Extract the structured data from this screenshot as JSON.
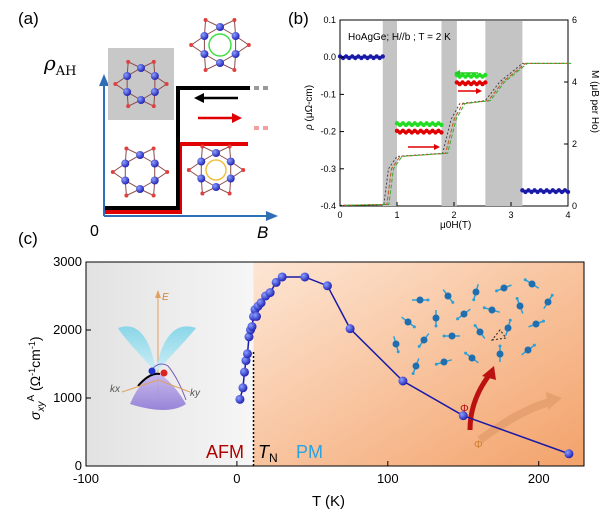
{
  "panels": {
    "a": {
      "label": "(a)",
      "y_axis_label": "ρ",
      "y_axis_sub": "AH",
      "origin_label": "0",
      "x_axis_label": "B"
    },
    "b": {
      "label": "(b)",
      "annotation": "HoAgGe; H//b ; T = 2 K",
      "y_left_label": "ρ",
      "y_left_units": "(μΩ-cm)",
      "y_right_label": "M (μB per Ho)",
      "x_label": "μ0H(T)",
      "y_left_ticks": [
        "0.1",
        "0.0",
        "-0.1",
        "-0.2",
        "-0.3",
        "-0.4"
      ],
      "y_right_ticks": [
        "0",
        "2",
        "4",
        "6"
      ],
      "x_ticks": [
        "0",
        "1",
        "2",
        "3",
        "4"
      ]
    },
    "c": {
      "label": "(c)",
      "y_label": "σxy A (Ω-1cm-1)",
      "x_label": "T (K)",
      "afm_label": "AFM",
      "pm_label": "PM",
      "tn_label": "T",
      "tn_sub": "N",
      "inset_e": "E",
      "inset_kx": "kx",
      "inset_ky": "ky",
      "phase_label": "Φ"
    }
  },
  "colors": {
    "blue_data": "#1a1aa8",
    "red_arrow": "#e00000",
    "afm_text": "#b00000",
    "pm_text": "#29a3e0",
    "green": "#22dd22"
  },
  "chart_data": [
    {
      "type": "scatter",
      "panel": "b",
      "xlim": [
        0,
        4
      ],
      "ylim": [
        -0.4,
        0.1
      ],
      "y2lim": [
        0,
        6
      ],
      "xlabel": "μ0H(T)",
      "ylabel": "ρ (μΩ-cm)",
      "y2label": "M (μB per Ho)",
      "shaded_regions": [
        [
          0.75,
          1.0
        ],
        [
          1.78,
          2.05
        ],
        [
          2.55,
          3.2
        ]
      ],
      "series": [
        {
          "color": "blue",
          "segments": [
            [
              [
                0.0,
                0.0
              ],
              [
                0.75,
                0.0
              ]
            ],
            [
              [
                3.2,
                -0.36
              ],
              [
                4.0,
                -0.36
              ]
            ]
          ]
        },
        {
          "color": "red",
          "segments": [
            [
              [
                1.0,
                -0.2
              ],
              [
                1.78,
                -0.2
              ]
            ],
            [
              [
                2.05,
                -0.07
              ],
              [
                2.55,
                -0.07
              ]
            ]
          ]
        },
        {
          "color": "green",
          "segments": [
            [
              [
                1.0,
                -0.18
              ],
              [
                1.78,
                -0.18
              ]
            ],
            [
              [
                2.05,
                -0.05
              ],
              [
                2.55,
                -0.05
              ]
            ]
          ]
        }
      ],
      "magnetization": [
        [
          0,
          0.02
        ],
        [
          0.77,
          0.05
        ],
        [
          0.85,
          1.2
        ],
        [
          1.0,
          1.6
        ],
        [
          1.8,
          1.7
        ],
        [
          1.95,
          2.8
        ],
        [
          2.1,
          3.3
        ],
        [
          2.55,
          3.4
        ],
        [
          2.8,
          4.0
        ],
        [
          3.2,
          4.6
        ],
        [
          4.0,
          4.6
        ]
      ]
    },
    {
      "type": "line",
      "panel": "c",
      "xlim": [
        -100,
        230
      ],
      "ylim": [
        0,
        3000
      ],
      "x_ticks": [
        -100,
        0,
        100,
        200
      ],
      "y_ticks": [
        0,
        1000,
        2000,
        3000
      ],
      "xlabel": "T (K)",
      "ylabel": "σxy A (Ω-1cm-1)",
      "tn": 11,
      "series": [
        {
          "x": [
            2,
            4,
            5,
            6,
            7,
            8,
            9,
            10,
            11,
            12,
            13,
            14,
            16,
            19,
            22,
            26,
            30,
            45,
            60,
            75,
            110,
            150,
            220
          ],
          "y": [
            980,
            1150,
            1380,
            1550,
            1650,
            1900,
            2000,
            2050,
            2200,
            2300,
            2200,
            2350,
            2400,
            2500,
            2550,
            2700,
            2780,
            2780,
            2650,
            2020,
            1250,
            740,
            180
          ]
        }
      ]
    }
  ]
}
